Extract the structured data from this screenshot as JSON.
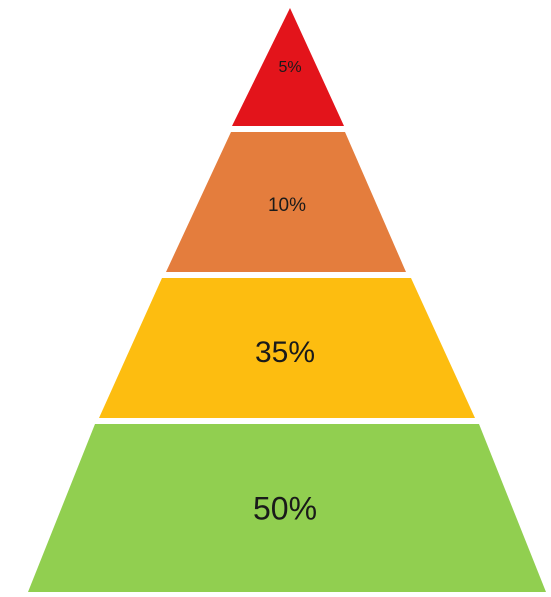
{
  "diagram": {
    "tiers": [
      {
        "label": "5%",
        "value": 5,
        "color": "#e3141b"
      },
      {
        "label": "10%",
        "value": 10,
        "color": "#e47d3d"
      },
      {
        "label": "35%",
        "value": 35,
        "color": "#fdbd10"
      },
      {
        "label": "50%",
        "value": 50,
        "color": "#91cf50"
      }
    ]
  }
}
